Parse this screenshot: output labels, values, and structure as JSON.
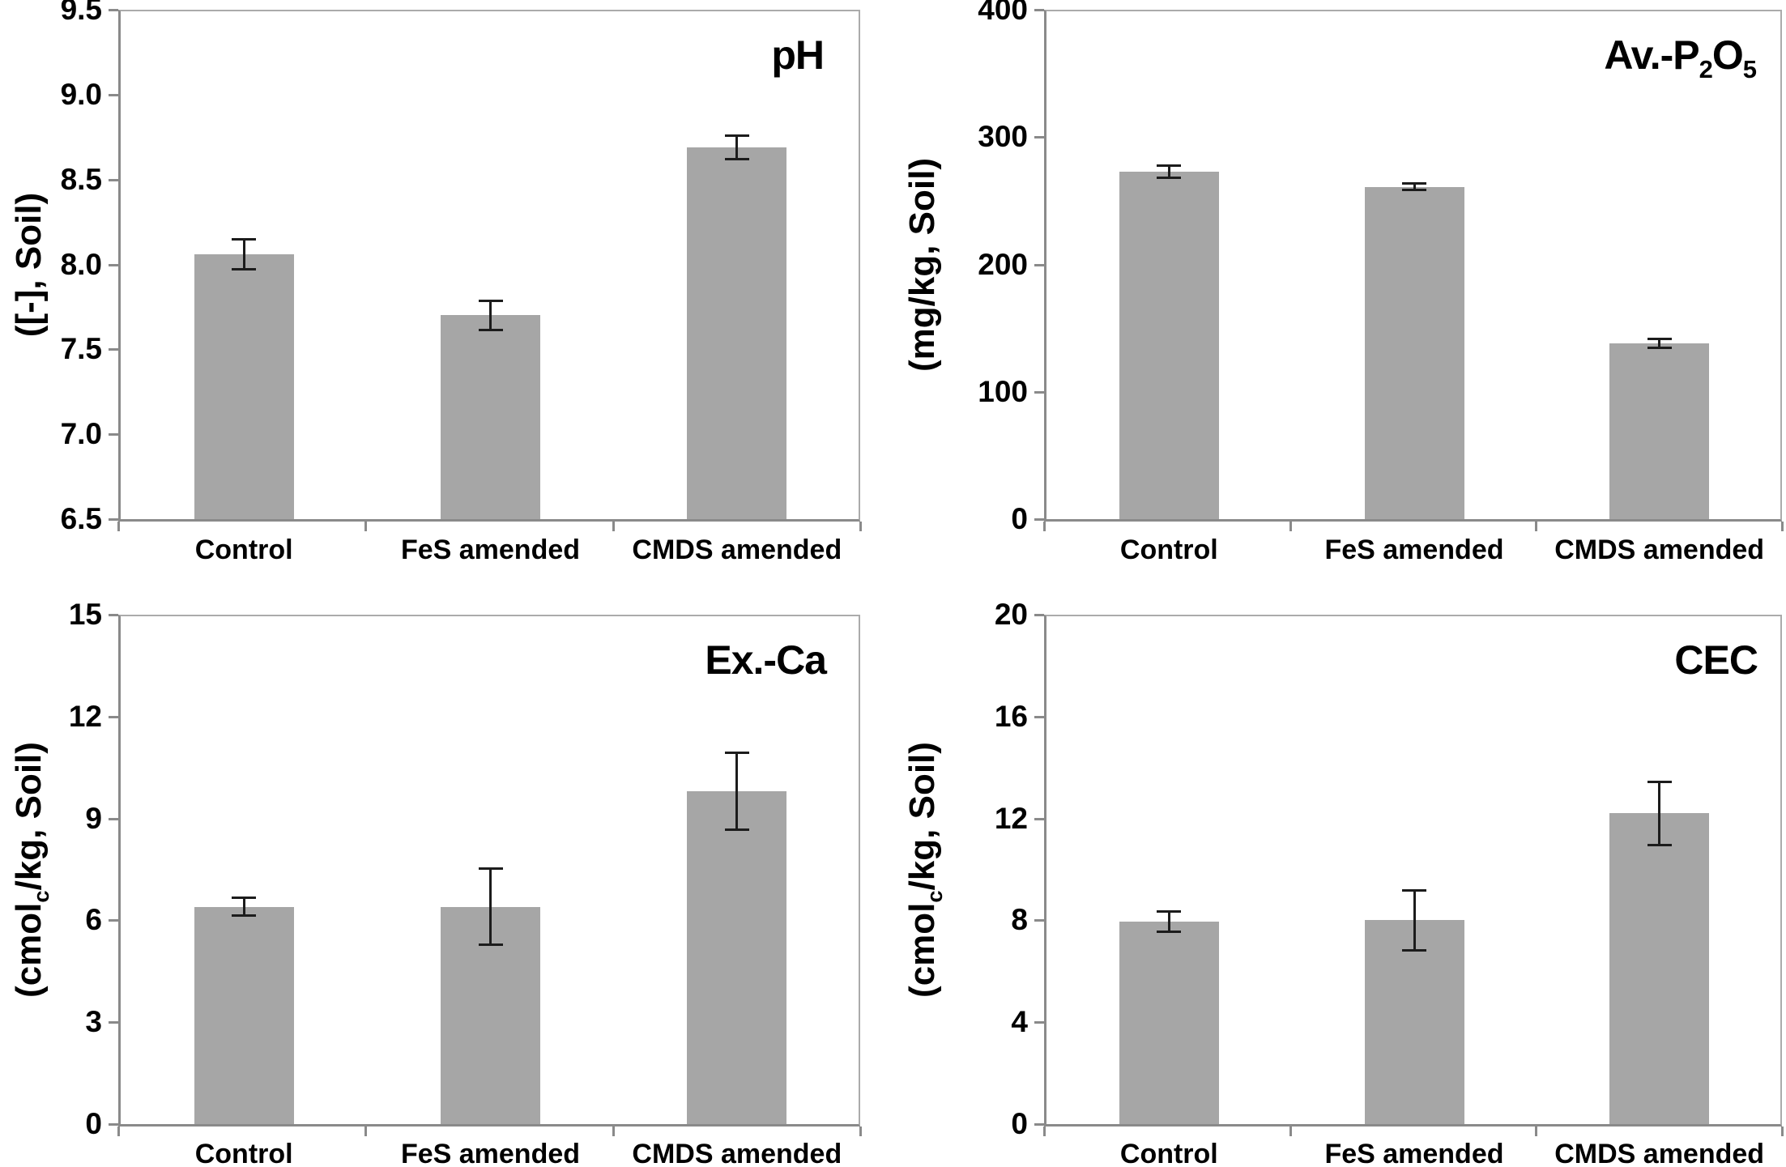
{
  "style": {
    "bar_color": "#a6a6a6",
    "axis_color": "#8a8a8a",
    "plot_border_color": "#ababab",
    "error_bar_color": "#1c1c1c",
    "text_color": "#000000",
    "background": "#ffffff"
  },
  "chart_data": [
    {
      "type": "bar",
      "position": "top-left",
      "title": "pH",
      "title_parts": [
        {
          "text": "pH"
        }
      ],
      "ylabel": "([-], Soil)",
      "ylabel_parts": [
        {
          "text": "([-], Soil)"
        }
      ],
      "xlabel": "",
      "categories": [
        "Control",
        "FeS amended",
        "CMDS amended"
      ],
      "values": [
        8.06,
        7.7,
        8.69
      ],
      "errors": [
        0.09,
        0.09,
        0.07
      ],
      "ylim": [
        6.5,
        9.5
      ],
      "ytick_step": 0.5,
      "ytick_decimals": 1,
      "ytick_labels": [
        "6.5",
        "7.0",
        "7.5",
        "8.0",
        "8.5",
        "9.0",
        "9.5"
      ],
      "grid": false,
      "legend": "none"
    },
    {
      "type": "bar",
      "position": "top-right",
      "title": "Av.-P2O5",
      "title_parts": [
        {
          "text": "Av.-P"
        },
        {
          "text": "2",
          "sub": true
        },
        {
          "text": "O"
        },
        {
          "text": "5",
          "sub": true
        }
      ],
      "ylabel": "(mg/kg, Soil)",
      "ylabel_parts": [
        {
          "text": "(mg/kg, Soil)"
        }
      ],
      "xlabel": "",
      "categories": [
        "Control",
        "FeS amended",
        "CMDS amended"
      ],
      "values": [
        273,
        261,
        138
      ],
      "errors": [
        5,
        3,
        4
      ],
      "ylim": [
        0,
        400
      ],
      "ytick_step": 100,
      "ytick_decimals": 0,
      "ytick_labels": [
        "0",
        "100",
        "200",
        "300",
        "400"
      ],
      "grid": false,
      "legend": "none"
    },
    {
      "type": "bar",
      "position": "bottom-left",
      "title": "Ex.-Ca",
      "title_parts": [
        {
          "text": "Ex.-Ca"
        }
      ],
      "ylabel": "(cmolc/kg, Soil)",
      "ylabel_parts": [
        {
          "text": "(cmol"
        },
        {
          "text": "c",
          "sub": true
        },
        {
          "text": "/kg, Soil)"
        }
      ],
      "xlabel": "",
      "categories": [
        "Control",
        "FeS amended",
        "CMDS amended"
      ],
      "values": [
        6.4,
        6.4,
        9.8
      ],
      "errors": [
        0.27,
        1.13,
        1.15
      ],
      "ylim": [
        0,
        15
      ],
      "ytick_step": 3,
      "ytick_decimals": 0,
      "ytick_labels": [
        "0",
        "3",
        "6",
        "9",
        "12",
        "15"
      ],
      "grid": false,
      "legend": "none"
    },
    {
      "type": "bar",
      "position": "bottom-right",
      "title": "CEC",
      "title_parts": [
        {
          "text": "CEC"
        }
      ],
      "ylabel": "(cmolc/kg, Soil)",
      "ylabel_parts": [
        {
          "text": "(cmol"
        },
        {
          "text": "c",
          "sub": true
        },
        {
          "text": "/kg, Soil)"
        }
      ],
      "xlabel": "",
      "categories": [
        "Control",
        "FeS amended",
        "CMDS amended"
      ],
      "values": [
        7.95,
        8.0,
        12.2
      ],
      "errors": [
        0.4,
        1.2,
        1.25
      ],
      "ylim": [
        0,
        20
      ],
      "ytick_step": 4,
      "ytick_decimals": 0,
      "ytick_labels": [
        "0",
        "4",
        "8",
        "12",
        "16",
        "20"
      ],
      "grid": false,
      "legend": "none"
    }
  ]
}
